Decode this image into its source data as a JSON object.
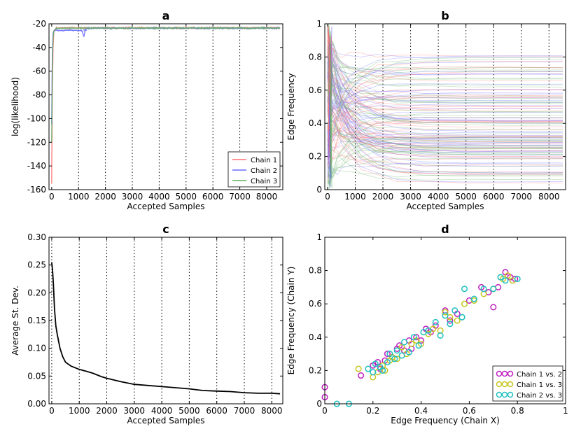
{
  "chart_data": [
    {
      "type": "line",
      "panel": "a",
      "title": "a",
      "xlabel": "Accepted Samples",
      "ylabel": "log(likelihood)",
      "xlim": [
        -100,
        8600
      ],
      "ylim": [
        -160,
        -20
      ],
      "xticks": [
        0,
        1000,
        2000,
        3000,
        4000,
        5000,
        6000,
        7000,
        8000
      ],
      "yticks": [
        -160,
        -140,
        -120,
        -100,
        -80,
        -60,
        -40,
        -20
      ],
      "vlines": [
        1000,
        2000,
        3000,
        4000,
        5000,
        6000,
        7000,
        8000
      ],
      "legend_position": "bottom-right",
      "series": [
        {
          "name": "Chain 1",
          "color": "#ff6f6f",
          "x": [
            0,
            10,
            25,
            50,
            80,
            150,
            300,
            1000,
            2000,
            3000,
            4000,
            5000,
            6000,
            7000,
            8000,
            8500
          ],
          "y": [
            -155,
            -120,
            -75,
            -40,
            -27,
            -24,
            -23.5,
            -23.5,
            -23.4,
            -23.5,
            -23.4,
            -23.5,
            -23.4,
            -23.5,
            -23.4,
            -23.5
          ]
        },
        {
          "name": "Chain 2",
          "color": "#6a6aff",
          "x": [
            0,
            10,
            25,
            50,
            80,
            150,
            1100,
            1150,
            1200,
            1250,
            1300,
            2000,
            3000,
            4000,
            5000,
            6000,
            7000,
            8000,
            8500
          ],
          "y": [
            -105,
            -80,
            -45,
            -28,
            -26,
            -25.5,
            -25.5,
            -27.5,
            -31,
            -25,
            -23.8,
            -23.8,
            -23.7,
            -23.8,
            -23.7,
            -23.8,
            -23.7,
            -23.8,
            -23.7
          ]
        },
        {
          "name": "Chain 3",
          "color": "#5fae5f",
          "x": [
            0,
            10,
            25,
            50,
            80,
            150,
            300,
            1000,
            2000,
            3000,
            4000,
            5000,
            6000,
            7000,
            8000,
            8500
          ],
          "y": [
            -120,
            -95,
            -55,
            -32,
            -26,
            -24,
            -23.6,
            -23.6,
            -23.6,
            -23.6,
            -23.6,
            -23.6,
            -23.6,
            -23.6,
            -23.6,
            -23.6
          ]
        }
      ]
    },
    {
      "type": "line",
      "panel": "b",
      "title": "b",
      "xlabel": "Accepted Samples",
      "ylabel": "Edge Frequency",
      "xlim": [
        -100,
        8600
      ],
      "ylim": [
        0.0,
        1.0
      ],
      "xticks": [
        0,
        1000,
        2000,
        3000,
        4000,
        5000,
        6000,
        7000,
        8000
      ],
      "yticks": [
        0.0,
        0.2,
        0.4,
        0.6,
        0.8,
        1.0
      ],
      "vlines": [
        1000,
        2000,
        3000,
        4000,
        5000,
        6000,
        7000,
        8000
      ],
      "series_colors": [
        "#ff6f6f",
        "#6a6aff",
        "#5fae5f"
      ],
      "x_end": 8500,
      "converged_values": [
        0.05,
        0.08,
        0.1,
        0.12,
        0.15,
        0.18,
        0.2,
        0.21,
        0.22,
        0.23,
        0.24,
        0.25,
        0.26,
        0.27,
        0.28,
        0.29,
        0.3,
        0.31,
        0.32,
        0.33,
        0.35,
        0.37,
        0.39,
        0.4,
        0.41,
        0.43,
        0.45,
        0.47,
        0.49,
        0.5,
        0.52,
        0.54,
        0.55,
        0.57,
        0.6,
        0.62,
        0.65,
        0.68,
        0.7,
        0.72,
        0.75,
        0.78,
        0.8
      ]
    },
    {
      "type": "line",
      "panel": "c",
      "title": "c",
      "xlabel": "Accepted Samples",
      "ylabel": "Average St. Dev.",
      "xlim": [
        -100,
        8400
      ],
      "ylim": [
        0.0,
        0.3
      ],
      "xticks": [
        0,
        1000,
        2000,
        3000,
        4000,
        5000,
        6000,
        7000,
        8000
      ],
      "yticks": [
        0.0,
        0.05,
        0.1,
        0.15,
        0.2,
        0.25,
        0.3
      ],
      "ytick_labels": [
        "0.00",
        "0.05",
        "0.10",
        "0.15",
        "0.20",
        "0.25",
        "0.30"
      ],
      "vlines": [
        0,
        1000,
        2000,
        3000,
        4000,
        5000,
        6000,
        7000,
        8000
      ],
      "series": [
        {
          "name": "average st. dev.",
          "color": "#000000",
          "x": [
            0,
            30,
            60,
            100,
            150,
            200,
            300,
            400,
            500,
            700,
            1000,
            1300,
            1500,
            1800,
            2000,
            2500,
            3000,
            3500,
            4000,
            4500,
            5000,
            5500,
            6000,
            6500,
            7000,
            7500,
            8000,
            8300
          ],
          "y": [
            0.255,
            0.24,
            0.215,
            0.17,
            0.14,
            0.125,
            0.1,
            0.085,
            0.075,
            0.068,
            0.062,
            0.058,
            0.055,
            0.049,
            0.046,
            0.04,
            0.035,
            0.033,
            0.031,
            0.029,
            0.027,
            0.024,
            0.023,
            0.022,
            0.02,
            0.019,
            0.019,
            0.018
          ]
        }
      ]
    },
    {
      "type": "scatter",
      "panel": "d",
      "title": "d",
      "xlabel": "Edge Frequency (Chain X)",
      "ylabel": "Edge Frequency (Chain Y)",
      "xlim": [
        0.0,
        1.0
      ],
      "ylim": [
        0.0,
        1.0
      ],
      "xticks": [
        0.0,
        0.2,
        0.4,
        0.6,
        0.8,
        1.0
      ],
      "yticks": [
        0.0,
        0.2,
        0.4,
        0.6,
        0.8,
        1.0
      ],
      "legend_position": "bottom-right",
      "series": [
        {
          "name": "Chain 1 vs. 2",
          "color": "#c01fc0",
          "x": [
            0.0,
            0.0,
            0.15,
            0.2,
            0.22,
            0.23,
            0.25,
            0.26,
            0.28,
            0.3,
            0.31,
            0.33,
            0.35,
            0.36,
            0.38,
            0.4,
            0.42,
            0.44,
            0.46,
            0.5,
            0.52,
            0.55,
            0.6,
            0.65,
            0.68,
            0.7,
            0.72,
            0.75,
            0.77,
            0.79
          ],
          "y": [
            0.1,
            0.04,
            0.17,
            0.23,
            0.25,
            0.21,
            0.26,
            0.3,
            0.28,
            0.33,
            0.35,
            0.32,
            0.38,
            0.33,
            0.4,
            0.38,
            0.45,
            0.43,
            0.47,
            0.56,
            0.5,
            0.54,
            0.62,
            0.7,
            0.67,
            0.58,
            0.7,
            0.79,
            0.76,
            0.75
          ]
        },
        {
          "name": "Chain 1 vs. 3",
          "color": "#c5c51f",
          "x": [
            0.14,
            0.2,
            0.22,
            0.24,
            0.25,
            0.27,
            0.28,
            0.3,
            0.32,
            0.34,
            0.36,
            0.38,
            0.4,
            0.43,
            0.45,
            0.48,
            0.5,
            0.52,
            0.55,
            0.58,
            0.62,
            0.66,
            0.7,
            0.74,
            0.76,
            0.78
          ],
          "y": [
            0.21,
            0.16,
            0.19,
            0.23,
            0.2,
            0.26,
            0.28,
            0.27,
            0.34,
            0.3,
            0.36,
            0.38,
            0.36,
            0.42,
            0.45,
            0.44,
            0.55,
            0.52,
            0.5,
            0.6,
            0.62,
            0.66,
            0.69,
            0.75,
            0.77,
            0.74
          ]
        },
        {
          "name": "Chain 2 vs. 3",
          "color": "#1fc0c0",
          "x": [
            0.05,
            0.1,
            0.18,
            0.2,
            0.21,
            0.23,
            0.24,
            0.26,
            0.27,
            0.29,
            0.3,
            0.32,
            0.33,
            0.35,
            0.37,
            0.39,
            0.41,
            0.43,
            0.46,
            0.48,
            0.5,
            0.52,
            0.54,
            0.57,
            0.58,
            0.62,
            0.66,
            0.7,
            0.73,
            0.75,
            0.8
          ],
          "y": [
            0.0,
            0.0,
            0.21,
            0.19,
            0.24,
            0.22,
            0.2,
            0.25,
            0.3,
            0.27,
            0.32,
            0.29,
            0.37,
            0.31,
            0.4,
            0.35,
            0.43,
            0.44,
            0.49,
            0.41,
            0.53,
            0.48,
            0.56,
            0.52,
            0.69,
            0.63,
            0.69,
            0.69,
            0.76,
            0.74,
            0.75
          ]
        }
      ]
    }
  ]
}
